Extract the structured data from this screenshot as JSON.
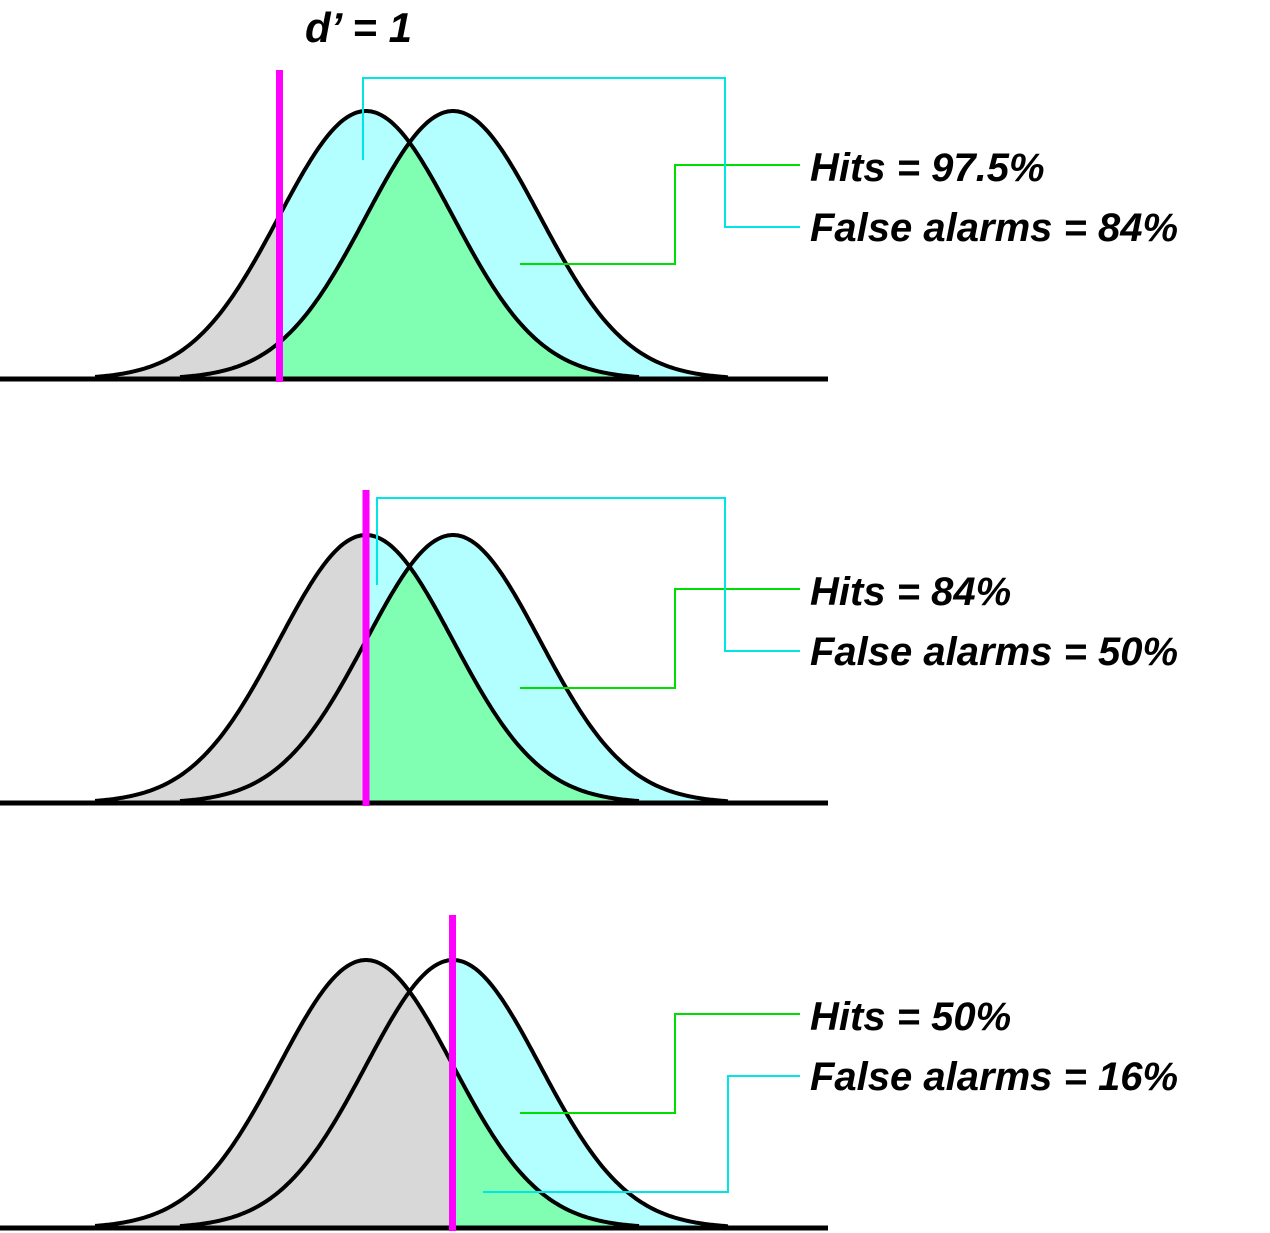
{
  "title": "d’ = 1",
  "colors": {
    "noise_fill": "#d8d8d8",
    "signal_fill": "#b3ffb3",
    "overlap_fill": "#80ffb3",
    "false_alarm_fill": "#b3ffff",
    "criterion": "#ff00ff",
    "hits_leader": "#00dd00",
    "fa_leader": "#00e5e5",
    "outline": "#000000"
  },
  "panels": [
    {
      "hits_label": "Hits = 97.5%",
      "fa_label": "False alarms = 84%",
      "hits_pct": 97.5,
      "fa_pct": 84
    },
    {
      "hits_label": "Hits = 84%",
      "fa_label": "False alarms = 50%",
      "hits_pct": 84,
      "fa_pct": 50
    },
    {
      "hits_label": "Hits = 50%",
      "fa_label": "False alarms = 16%",
      "hits_pct": 50,
      "fa_pct": 16
    }
  ]
}
